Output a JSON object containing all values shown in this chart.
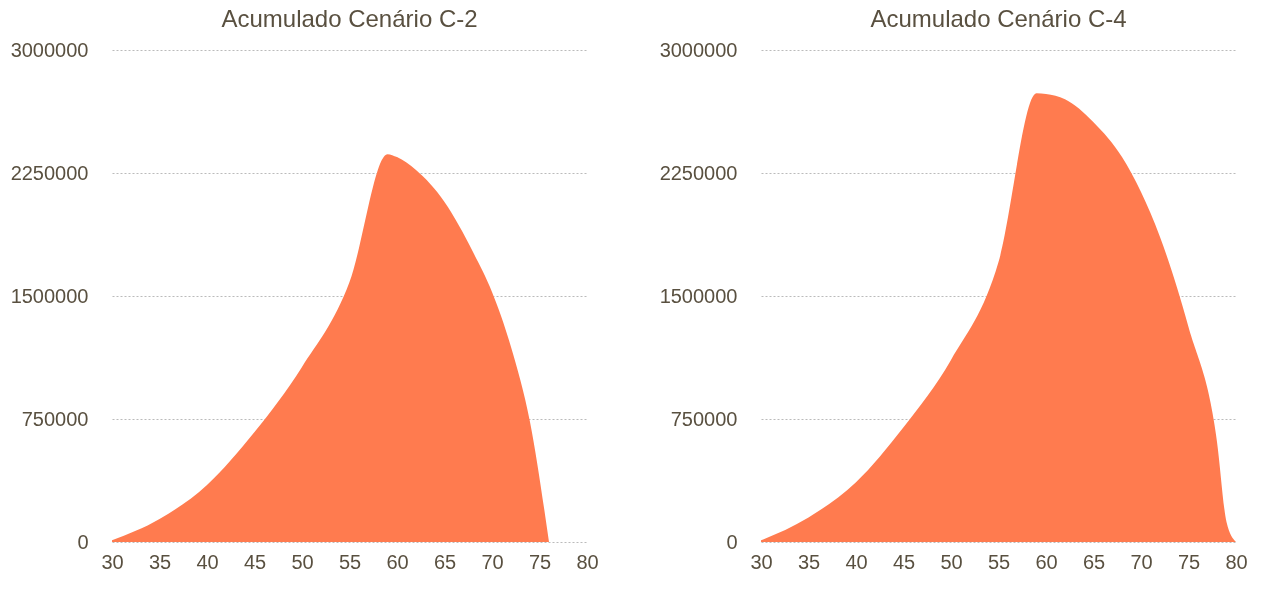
{
  "chart_data": [
    {
      "type": "area",
      "title": "Acumulado Cenário C-2",
      "x": [
        30,
        35,
        40,
        45,
        50,
        55,
        59,
        60,
        62,
        65,
        68,
        70,
        72,
        74,
        76
      ],
      "values": [
        10000,
        140000,
        348000,
        670000,
        1067000,
        1585000,
        2365000,
        2347000,
        2268000,
        2073000,
        1768000,
        1524000,
        1189000,
        732000,
        0
      ],
      "color": "#ff7b4f",
      "xlim": [
        30,
        80
      ],
      "xticks": [
        30,
        35,
        40,
        45,
        50,
        55,
        60,
        65,
        70,
        75,
        80
      ],
      "ylim": [
        0,
        3000000
      ],
      "yticks": [
        0,
        750000,
        1500000,
        2250000,
        3000000
      ],
      "grid": "y"
    },
    {
      "type": "area",
      "title": "Acumulado Cenário C-4",
      "x": [
        30,
        35,
        40,
        45,
        50,
        55,
        59,
        60,
        62,
        65,
        68,
        70,
        72,
        75,
        78,
        79,
        80
      ],
      "values": [
        10000,
        150000,
        365000,
        700000,
        1110000,
        1707000,
        2737000,
        2731000,
        2700000,
        2560000,
        2347000,
        2134000,
        1860000,
        1311000,
        610000,
        122000,
        0
      ],
      "color": "#ff7b4f",
      "xlim": [
        30,
        80
      ],
      "xticks": [
        30,
        35,
        40,
        45,
        50,
        55,
        60,
        65,
        70,
        75,
        80
      ],
      "ylim": [
        0,
        3000000
      ],
      "yticks": [
        0,
        750000,
        1500000,
        2250000,
        3000000
      ],
      "grid": "y"
    }
  ]
}
